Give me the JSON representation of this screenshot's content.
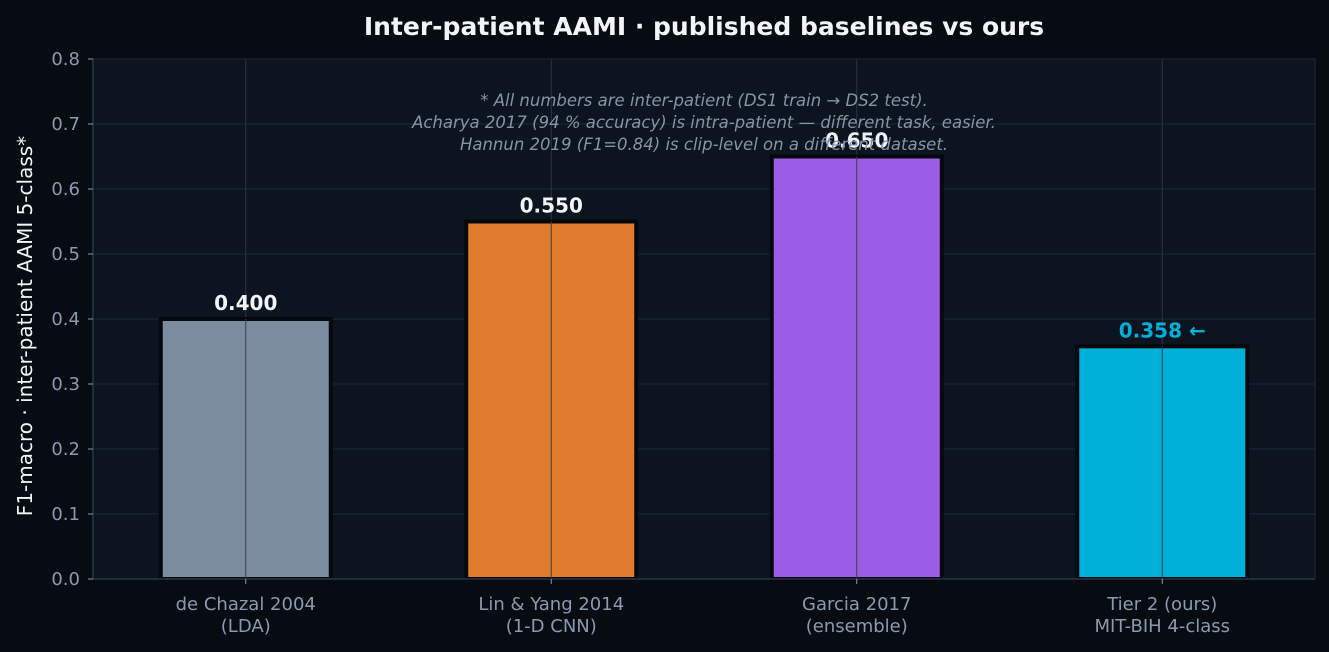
{
  "chart_data": {
    "type": "bar",
    "title": "Inter-patient AAMI · published baselines vs ours",
    "xlabel": "",
    "ylabel": "F1-macro · inter-patient AAMI 5-class*",
    "ylim": [
      0,
      0.8
    ],
    "yticks": [
      "0.0",
      "0.1",
      "0.2",
      "0.3",
      "0.4",
      "0.5",
      "0.6",
      "0.7",
      "0.8"
    ],
    "grid": true,
    "categories": [
      [
        "de Chazal 2004",
        "(LDA)"
      ],
      [
        "Lin & Yang 2014",
        "(1-D CNN)"
      ],
      [
        "Garcia 2017",
        "(ensemble)"
      ],
      [
        "Tier 2 (ours)",
        "MIT-BIH 4-class"
      ]
    ],
    "values": [
      0.4,
      0.55,
      0.65,
      0.358
    ],
    "value_labels": [
      "0.400",
      "0.550",
      "0.650",
      "0.358 ←"
    ],
    "colors": [
      "#7a8c9e",
      "#e07b2e",
      "#9b5de5",
      "#00b0d8"
    ],
    "value_label_colors": [
      "#f2f5f8",
      "#f2f5f8",
      "#f2f5f8",
      "#00b0d8"
    ],
    "annotation": [
      "* All numbers are inter-patient (DS1 train → DS2 test).",
      "Acharya 2017 (94 % accuracy) is intra-patient — different task, easier.",
      "Hannun 2019 (F1=0.84) is clip-level on a different dataset."
    ]
  }
}
